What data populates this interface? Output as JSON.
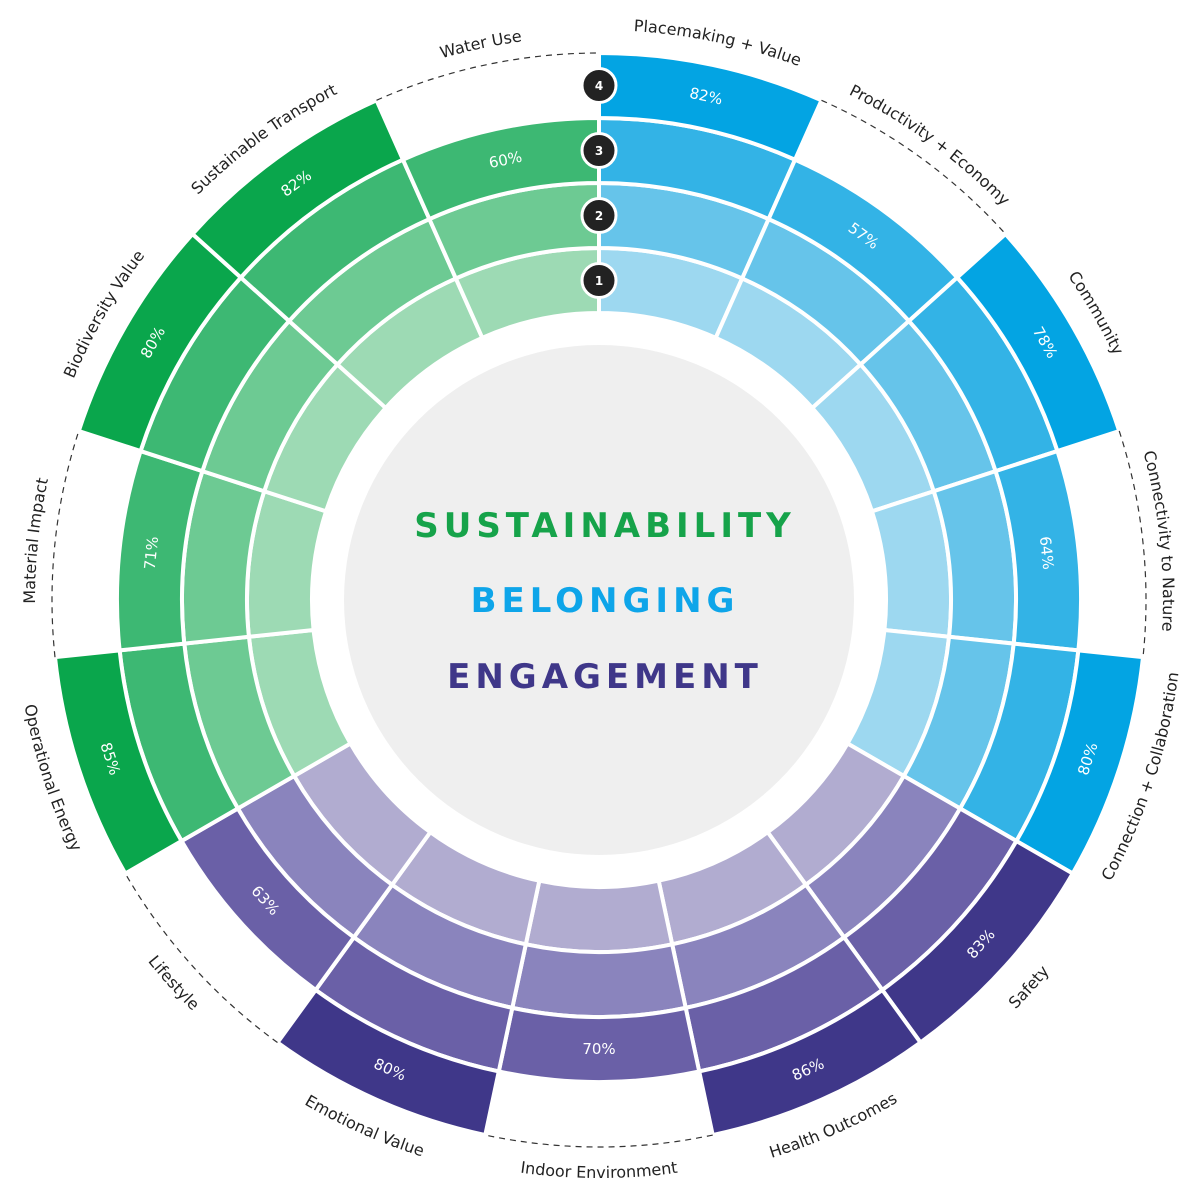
{
  "chart_data": {
    "type": "radial-bar",
    "center_labels": [
      {
        "text": "SUSTAINABILITY",
        "color": "#16a34a"
      },
      {
        "text": "BELONGING",
        "color": "#0ea5e9"
      },
      {
        "text": "ENGAGEMENT",
        "color": "#3f3789"
      }
    ],
    "levels": [
      "1",
      "2",
      "3",
      "4"
    ],
    "series": [
      {
        "group": "belonging",
        "categories": [
          "Placemaking + Value",
          "Productivity + Economy",
          "Community",
          "Connectivity to Nature",
          "Connection + Collaboration"
        ],
        "levels": [
          4,
          3,
          4,
          3,
          4
        ],
        "values": [
          "82%",
          "57%",
          "78%",
          "64%",
          "80%"
        ]
      },
      {
        "group": "engagement",
        "categories": [
          "Safety",
          "Health Outcomes",
          "Indoor Environment",
          "Emotional Value",
          "Lifestyle"
        ],
        "levels": [
          4,
          4,
          3,
          4,
          3
        ],
        "values": [
          "83%",
          "86%",
          "70%",
          "80%",
          "63%"
        ]
      },
      {
        "group": "sustainability",
        "categories": [
          "Operational Energy",
          "Material Impact",
          "Biodiversity Value",
          "Sustainable Transport",
          "Water Use"
        ],
        "levels": [
          4,
          3,
          4,
          4,
          3
        ],
        "values": [
          "85%",
          "71%",
          "80%",
          "82%",
          "60%"
        ]
      }
    ],
    "colors": {
      "belonging": [
        "#9dd8f0",
        "#66c4ea",
        "#33b3e6",
        "#03a4e3"
      ],
      "engagement": [
        "#b1acd0",
        "#8a84bd",
        "#6a60a7",
        "#3f3789"
      ],
      "sustainability": [
        "#9ddab4",
        "#6dca93",
        "#3db873",
        "#0aa64c"
      ]
    }
  }
}
